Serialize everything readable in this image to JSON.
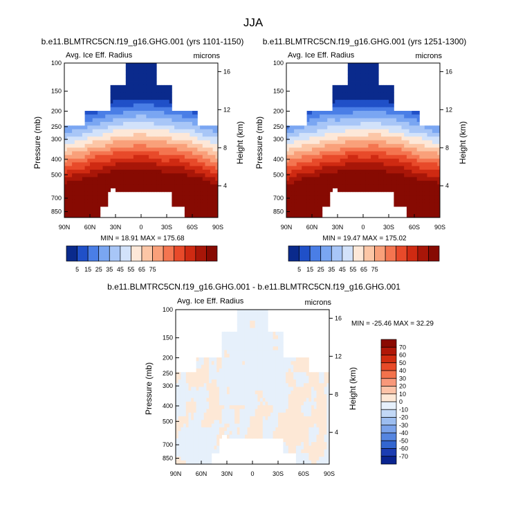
{
  "figure_title": "JJA",
  "chart_data": [
    {
      "type": "heatmap",
      "title": "b.e11.BLMTRC5CN.f19_g16.GHG.001 (yrs 1101-1150)",
      "subtitle_left": "Avg. Ice Eff. Radius",
      "subtitle_right": "microns",
      "ylabel": "Pressure (mb)",
      "ylabel_right": "Height (km)",
      "x_ticks": [
        "90N",
        "60N",
        "30N",
        "0",
        "30S",
        "60S",
        "90S"
      ],
      "x_values": [
        90,
        60,
        30,
        0,
        -30,
        -60,
        -90
      ],
      "y_ticks": [
        "100",
        "150",
        "200",
        "250",
        "300",
        "400",
        "500",
        "700",
        "850"
      ],
      "y_values": [
        100,
        150,
        200,
        250,
        300,
        400,
        500,
        700,
        850
      ],
      "ylim": [
        100,
        925
      ],
      "height_ticks": [
        "4",
        "8",
        "12",
        "16"
      ],
      "height_values": [
        4,
        8,
        12,
        16
      ],
      "stats": "MIN = 18.91   MAX = 175.68",
      "min": 18.91,
      "max": 175.68,
      "palette": "absolute"
    },
    {
      "type": "heatmap",
      "title": "b.e11.BLMTRC5CN.f19_g16.GHG.001 (yrs 1251-1300)",
      "subtitle_left": "Avg. Ice Eff. Radius",
      "subtitle_right": "microns",
      "ylabel": "Pressure (mb)",
      "ylabel_right": "Height (km)",
      "x_ticks": [
        "90N",
        "60N",
        "30N",
        "0",
        "30S",
        "60S",
        "90S"
      ],
      "x_values": [
        90,
        60,
        30,
        0,
        -30,
        -60,
        -90
      ],
      "y_ticks": [
        "100",
        "150",
        "200",
        "250",
        "300",
        "400",
        "500",
        "700",
        "850"
      ],
      "y_values": [
        100,
        150,
        200,
        250,
        300,
        400,
        500,
        700,
        850
      ],
      "ylim": [
        100,
        925
      ],
      "height_ticks": [
        "4",
        "8",
        "12",
        "16"
      ],
      "height_values": [
        4,
        8,
        12,
        16
      ],
      "stats": "MIN = 19.47   MAX = 175.02",
      "min": 19.47,
      "max": 175.02,
      "palette": "absolute"
    },
    {
      "type": "heatmap",
      "title": "b.e11.BLMTRC5CN.f19_g16.GHG.001 - b.e11.BLMTRC5CN.f19_g16.GHG.001",
      "subtitle_left": "Avg. Ice Eff. Radius",
      "subtitle_right": "microns",
      "ylabel": "Pressure (mb)",
      "ylabel_right": "Height (km)",
      "x_ticks": [
        "90N",
        "60N",
        "30N",
        "0",
        "30S",
        "60S",
        "90S"
      ],
      "x_values": [
        90,
        60,
        30,
        0,
        -30,
        -60,
        -90
      ],
      "y_ticks": [
        "100",
        "150",
        "200",
        "250",
        "300",
        "400",
        "500",
        "700",
        "850"
      ],
      "y_values": [
        100,
        150,
        200,
        250,
        300,
        400,
        500,
        700,
        850
      ],
      "ylim": [
        100,
        925
      ],
      "height_ticks": [
        "4",
        "8",
        "12",
        "16"
      ],
      "height_values": [
        4,
        8,
        12,
        16
      ],
      "stats": "MIN = -25.46   MAX = 32.29",
      "min": -25.46,
      "max": 32.29,
      "palette": "difference"
    }
  ],
  "colorbar_absolute": {
    "labels": [
      "5",
      "15",
      "25",
      "35",
      "45",
      "55",
      "65",
      "75"
    ],
    "colors": [
      "#0a2a8c",
      "#2050c8",
      "#4a7ee6",
      "#7aa6f2",
      "#a8c6f7",
      "#d2e2fa",
      "#fde8d8",
      "#fcc6a6",
      "#f9a07a",
      "#f47550",
      "#e84a2a",
      "#cf2a12",
      "#a81608",
      "#870a02"
    ]
  },
  "colorbar_difference": {
    "labels": [
      "70",
      "60",
      "50",
      "40",
      "30",
      "20",
      "10",
      "0",
      "-10",
      "-20",
      "-30",
      "-40",
      "-50",
      "-60",
      "-70"
    ],
    "colors": [
      "#8a0a02",
      "#b01708",
      "#d02c10",
      "#e84a28",
      "#f3724c",
      "#f8987a",
      "#fcc3a8",
      "#fde8d6",
      "#e6f0fb",
      "#c2d8f6",
      "#9cbdf0",
      "#7aa2ea",
      "#5585e0",
      "#3366d0",
      "#1c3db2",
      "#0a2490"
    ]
  }
}
